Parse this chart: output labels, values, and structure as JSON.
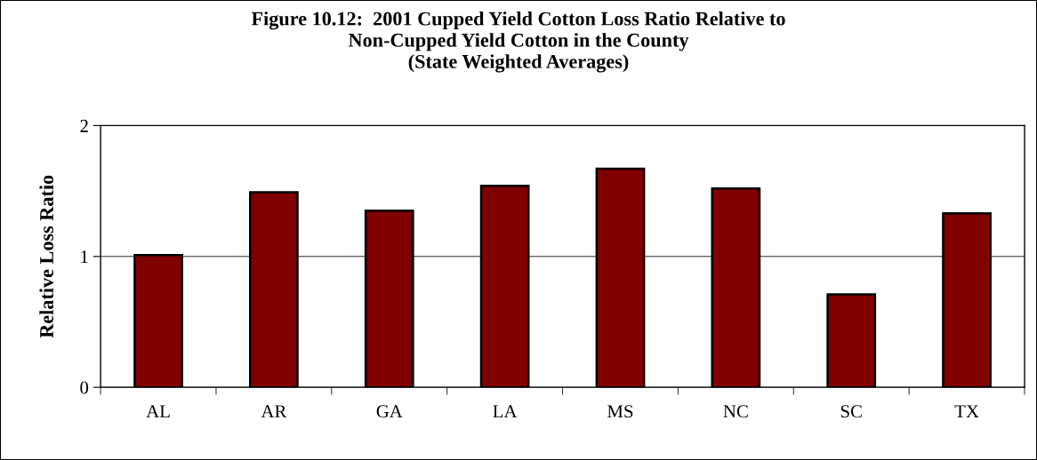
{
  "chart_data": {
    "type": "bar",
    "title": "Figure 10.12:  2001 Cupped Yield Cotton Loss Ratio Relative to\nNon-Cupped Yield Cotton in the County\n(State Weighted Averages)",
    "ylabel": "Relative Loss Ratio",
    "categories": [
      "AL",
      "AR",
      "GA",
      "LA",
      "MS",
      "NC",
      "SC",
      "TX"
    ],
    "values": [
      1.01,
      1.49,
      1.35,
      1.54,
      1.67,
      1.52,
      0.71,
      1.33
    ],
    "color": "#800000",
    "ylim": [
      0,
      2
    ],
    "yticks": [
      0,
      1,
      2
    ],
    "grid": "y",
    "legend": false
  }
}
